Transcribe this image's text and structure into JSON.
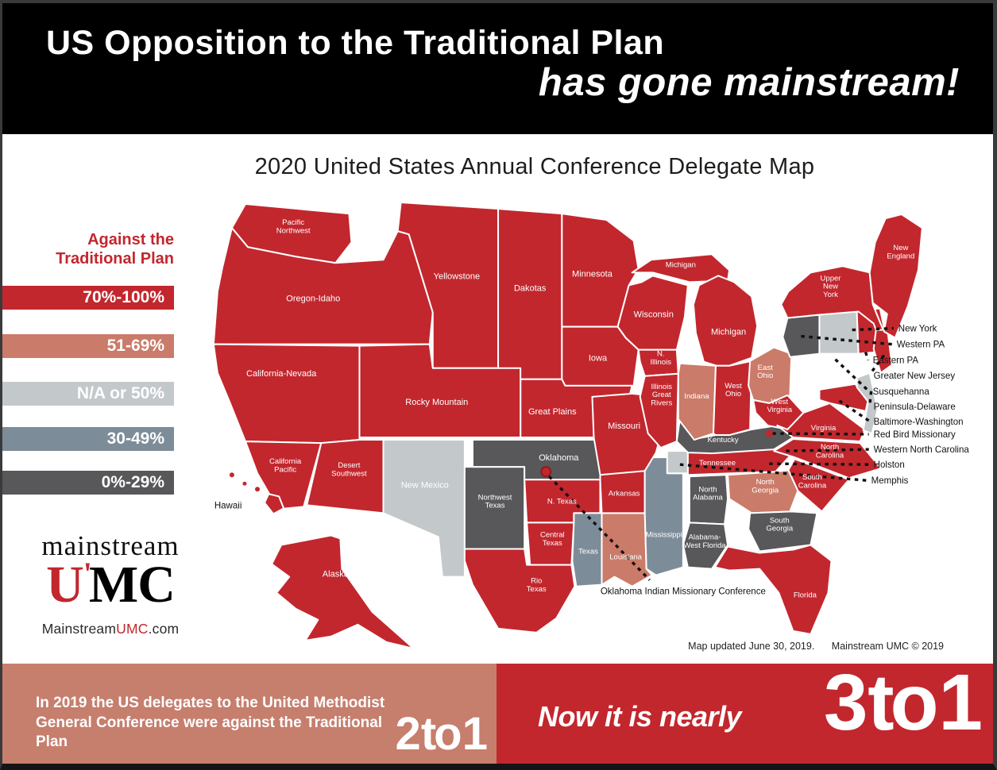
{
  "header": {
    "line1": "US Opposition to the Traditional Plan",
    "line2": "has gone mainstream!"
  },
  "map_title": "2020 United States Annual Conference Delegate Map",
  "legend": {
    "title_line1": "Against the",
    "title_line2": "Traditional Plan",
    "title_color": "#c2272e",
    "colors": {
      "high": "#c2272e",
      "mid": "#cb7b69",
      "na": "#c3c8cb",
      "low": "#7d8c99",
      "lowest": "#58585a"
    },
    "items": [
      {
        "label": "70%-100%",
        "category": "high"
      },
      {
        "label": "51-69%",
        "category": "mid"
      },
      {
        "label": "N/A or 50%",
        "category": "na"
      },
      {
        "label": "30-49%",
        "category": "low"
      },
      {
        "label": "0%-29%",
        "category": "lowest"
      }
    ]
  },
  "map": {
    "regions": {
      "pacific_northwest": {
        "label": "Pacific\nNorthwest",
        "category": "high"
      },
      "oregon_idaho": {
        "label": "Oregon-Idaho",
        "category": "high"
      },
      "yellowstone": {
        "label": "Yellowstone",
        "category": "high"
      },
      "dakotas": {
        "label": "Dakotas",
        "category": "high"
      },
      "minnesota": {
        "label": "Minnesota",
        "category": "high"
      },
      "wisconsin": {
        "label": "Wisconsin",
        "category": "high"
      },
      "michigan_upper": {
        "label": "Michigan",
        "category": "high"
      },
      "michigan": {
        "label": "Michigan",
        "category": "high"
      },
      "california_nevada": {
        "label": "California-Nevada",
        "category": "high"
      },
      "rocky_mountain": {
        "label": "Rocky Mountain",
        "category": "high"
      },
      "great_plains": {
        "label": "Great Plains",
        "category": "high"
      },
      "iowa": {
        "label": "Iowa",
        "category": "high"
      },
      "missouri": {
        "label": "Missouri",
        "category": "high"
      },
      "california_pacific": {
        "label": "California\nPacific",
        "category": "high"
      },
      "desert_southwest": {
        "label": "Desert\nSouthwest",
        "category": "high"
      },
      "new_mexico": {
        "label": "New Mexico",
        "category": "na"
      },
      "northwest_texas": {
        "label": "Northwest\nTexas",
        "category": "lowest"
      },
      "oklahoma": {
        "label": "Oklahoma",
        "category": "lowest"
      },
      "north_texas": {
        "label": "N. Texas",
        "category": "high"
      },
      "central_texas": {
        "label": "Central\nTexas",
        "category": "high"
      },
      "rio_texas": {
        "label": "Rio\nTexas",
        "category": "high"
      },
      "texas": {
        "label": "Texas",
        "category": "low"
      },
      "louisiana": {
        "label": "Louisiana",
        "category": "mid"
      },
      "arkansas": {
        "label": "Arkansas",
        "category": "high"
      },
      "mississippi": {
        "label": "Mississippi",
        "category": "low"
      },
      "memphis_area": {
        "label": "",
        "category": "na"
      },
      "tennessee": {
        "label": "Tennessee",
        "category": "high"
      },
      "kentucky": {
        "label": "Kentucky",
        "category": "lowest"
      },
      "northern_illinois": {
        "label": "N.\nIllinois",
        "category": "high"
      },
      "illinois_great_rivers": {
        "label": "Illinois\nGreat\nRivers",
        "category": "high"
      },
      "indiana": {
        "label": "Indiana",
        "category": "mid"
      },
      "west_ohio": {
        "label": "West\nOhio",
        "category": "high"
      },
      "east_ohio": {
        "label": "East\nOhio",
        "category": "mid"
      },
      "west_virginia": {
        "label": "West\nVirginia",
        "category": "high"
      },
      "virginia": {
        "label": "Virginia",
        "category": "high"
      },
      "north_carolina": {
        "label": "North\nCarolina",
        "category": "high"
      },
      "south_carolina": {
        "label": "South\nCarolina",
        "category": "high"
      },
      "north_georgia": {
        "label": "North\nGeorgia",
        "category": "mid"
      },
      "south_georgia": {
        "label": "South\nGeorgia",
        "category": "lowest"
      },
      "north_alabama": {
        "label": "North\nAlabama",
        "category": "lowest"
      },
      "alabama_west_florida": {
        "label": "Alabama-\nWest Florida",
        "category": "lowest"
      },
      "florida": {
        "label": "Florida",
        "category": "high"
      },
      "upper_new_york": {
        "label": "Upper\nNew\nYork",
        "category": "high"
      },
      "new_england": {
        "label": "New\nEngland",
        "category": "high"
      },
      "western_pa_area": {
        "label": "",
        "category": "lowest"
      },
      "susquehanna_area": {
        "label": "",
        "category": "na"
      },
      "eastern_pa_area": {
        "label": "",
        "category": "high"
      },
      "greater_nj_area": {
        "label": "",
        "category": "high"
      },
      "peninsula_delaware_area": {
        "label": "",
        "category": "na"
      },
      "baltimore_washington_area": {
        "label": "",
        "category": "high"
      },
      "alaska": {
        "label": "Alaska",
        "category": "high"
      },
      "hawaii": {
        "label": "",
        "category": "high"
      },
      "red_bird_dot": {
        "label": "",
        "category": "high"
      },
      "oklahoma_dot": {
        "label": "",
        "category": "high"
      },
      "nyc_mark": {
        "label": "",
        "category": "high"
      }
    },
    "callouts": [
      "New York",
      "Western PA",
      "Eastern PA",
      "Greater New Jersey",
      "Susquehanna",
      "Peninsula-Delaware",
      "Baltimore-Washington",
      "Red Bird Missionary",
      "Western North Carolina",
      "Holston",
      "Memphis"
    ],
    "labels": {
      "hawaii": "Hawaii",
      "oimc": "Oklahoma Indian Missionary Conference"
    }
  },
  "logo": {
    "word": "mainstream",
    "u": "U",
    "apos": "'",
    "mc": "MC",
    "u_color": "#c2272e",
    "site_pre": "Mainstream",
    "site_mid": "UMC",
    "site_post": ".com"
  },
  "footer_note": {
    "updated": "Map updated June 30, 2019.",
    "copyright": "Mainstream UMC © 2019"
  },
  "banners": {
    "left": {
      "text": "In 2019 the US delegates to the United Methodist General Conference were against the Traditional Plan",
      "ratio": "2 to 1",
      "bg": "#c67e6d"
    },
    "right": {
      "prefix": "Now it is nearly",
      "ratio": "3 to 1",
      "bg": "#c2272e"
    }
  }
}
